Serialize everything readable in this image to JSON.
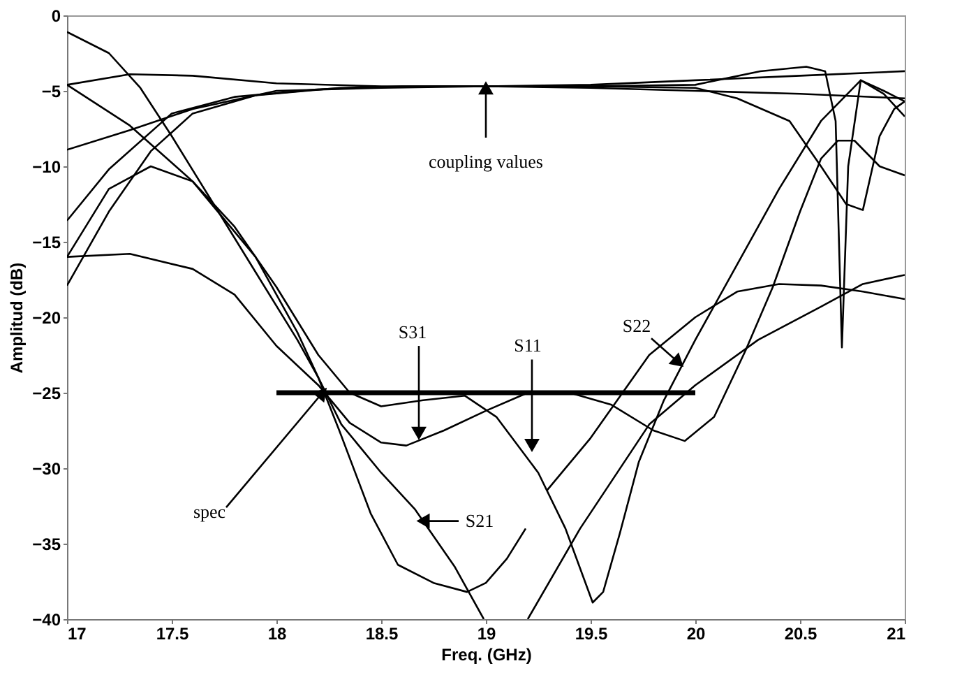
{
  "chart_data": {
    "type": "line",
    "xlabel": "Freq. (GHz)",
    "ylabel": "Amplitud (dB)",
    "xlim": [
      17,
      21
    ],
    "ylim": [
      -40,
      0
    ],
    "xticks": [
      17,
      17.5,
      18,
      18.5,
      19,
      19.5,
      20,
      20.5,
      21
    ],
    "yticks": [
      0,
      -5,
      -10,
      -15,
      -20,
      -25,
      -30,
      -35,
      -40
    ],
    "series": [
      {
        "color": "#000000",
        "x": [
          17,
          17.2,
          17.35,
          17.5,
          17.7,
          17.9,
          18.1,
          18.2,
          18.31,
          18.5,
          18.66,
          18.85,
          18.99
        ],
        "values": [
          -1.1,
          -2.5,
          -4.8,
          -8,
          -12.5,
          -17,
          -21.5,
          -24,
          -27.1,
          -30.3,
          -32.7,
          -36.5,
          -40
        ]
      },
      {
        "color": "#000000",
        "x": [
          17,
          17.3,
          17.6,
          17.9,
          18.1,
          18.2,
          18.3,
          18.45,
          18.58,
          18.75,
          18.91,
          19,
          19.1,
          19.19
        ],
        "values": [
          -4.6,
          -7.3,
          -11,
          -16,
          -21,
          -24,
          -27.5,
          -33,
          -36.4,
          -37.6,
          -38.2,
          -37.6,
          -36,
          -34
        ]
      },
      {
        "color": "#000000",
        "x": [
          17,
          17.3,
          17.6,
          18,
          18.5,
          19,
          19.5,
          20,
          20.31,
          20.53,
          20.62,
          20.67,
          20.7,
          20.73,
          20.79,
          20.9,
          21
        ],
        "values": [
          -4.6,
          -3.9,
          -4,
          -4.5,
          -4.7,
          -4.7,
          -4.7,
          -4.6,
          -3.7,
          -3.4,
          -3.7,
          -7,
          -22,
          -10,
          -4.3,
          -5.2,
          -6.7
        ]
      },
      {
        "color": "#000000",
        "x": [
          17,
          17.3,
          17.6,
          18,
          18.5,
          19,
          19.5,
          20,
          20.5,
          21
        ],
        "values": [
          -8.9,
          -7.6,
          -6.2,
          -5,
          -4.8,
          -4.7,
          -4.6,
          -4.3,
          -4,
          -3.7
        ]
      },
      {
        "color": "#000000",
        "x": [
          17,
          17.2,
          17.5,
          17.8,
          18.2,
          18.6,
          19,
          19.5,
          20,
          20.5,
          21
        ],
        "values": [
          -13.6,
          -10.2,
          -6.5,
          -5.4,
          -4.9,
          -4.7,
          -4.7,
          -4.8,
          -5,
          -5.2,
          -5.5
        ]
      },
      {
        "color": "#000000",
        "x": [
          17,
          17.2,
          17.4,
          17.6,
          17.9,
          18.3,
          18.8,
          19.5,
          20,
          20.2,
          20.45,
          20.6,
          20.72,
          20.8,
          20.88,
          20.95,
          21
        ],
        "values": [
          -17.9,
          -13,
          -9,
          -6.5,
          -5.3,
          -4.8,
          -4.7,
          -4.7,
          -4.8,
          -5.5,
          -7,
          -10,
          -12.5,
          -12.9,
          -8,
          -6.2,
          -5.7
        ]
      },
      {
        "color": "#000000",
        "x": [
          17,
          17.3,
          17.6,
          17.8,
          18,
          18.2,
          18.35,
          18.5,
          18.62,
          18.8,
          19,
          19.2,
          19.4,
          19.6,
          19.8,
          19.95,
          20.09,
          20.24,
          20.37,
          20.5,
          20.6,
          20.68,
          20.76,
          20.88,
          21
        ],
        "values": [
          -16,
          -15.8,
          -16.8,
          -18.5,
          -21.9,
          -24.5,
          -27,
          -28.3,
          -28.5,
          -27.5,
          -26.2,
          -25,
          -25,
          -25.8,
          -27.5,
          -28.2,
          -26.6,
          -22.2,
          -18,
          -13,
          -9.5,
          -8.3,
          -8.3,
          -10,
          -10.6
        ]
      },
      {
        "color": "#000000",
        "x": [
          17,
          17.2,
          17.4,
          17.6,
          17.8,
          18,
          18.2,
          18.35,
          18.5,
          18.7,
          18.9,
          19.05,
          19.25,
          19.38,
          19.51,
          19.56,
          19.64,
          19.73,
          19.85,
          20,
          20.2,
          20.4,
          20.6,
          20.79,
          20.9,
          21
        ],
        "values": [
          -16,
          -11.5,
          -10,
          -11,
          -14,
          -18,
          -22.5,
          -25,
          -25.9,
          -25.5,
          -25.2,
          -26.6,
          -30.3,
          -34,
          -38.9,
          -38.2,
          -34.3,
          -29.6,
          -25.5,
          -21.5,
          -16.5,
          -11.5,
          -7,
          -4.3,
          -5,
          -5.7
        ]
      },
      {
        "color": "#000000",
        "x": [
          19.2,
          19.45,
          19.78,
          20,
          20.3,
          20.6,
          20.8,
          21
        ],
        "values": [
          -40,
          -34,
          -27.1,
          -24.5,
          -21.5,
          -19.3,
          -17.8,
          -17.2
        ]
      },
      {
        "color": "#000000",
        "x": [
          19.29,
          19.5,
          19.78,
          20,
          20.2,
          20.4,
          20.6,
          20.8,
          21
        ],
        "values": [
          -31.5,
          -28,
          -22.5,
          -20,
          -18.3,
          -17.8,
          -17.9,
          -18.3,
          -18.8
        ]
      },
      {
        "color": "#000000",
        "x": [
          18,
          20
        ],
        "values": [
          -25,
          -25
        ]
      }
    ],
    "annotations": [
      {
        "text": "coupling values",
        "x": 19.0,
        "y": -4.8
      },
      {
        "text": "S31",
        "x": 18.68,
        "y": -27.7
      },
      {
        "text": "S11",
        "x": 19.22,
        "y": -28.5
      },
      {
        "text": "S22",
        "x": 19.92,
        "y": -23.0
      },
      {
        "text": "spec",
        "x": 18.22,
        "y": -25
      },
      {
        "text": "S21",
        "x": 18.7,
        "y": -33.5
      }
    ]
  }
}
